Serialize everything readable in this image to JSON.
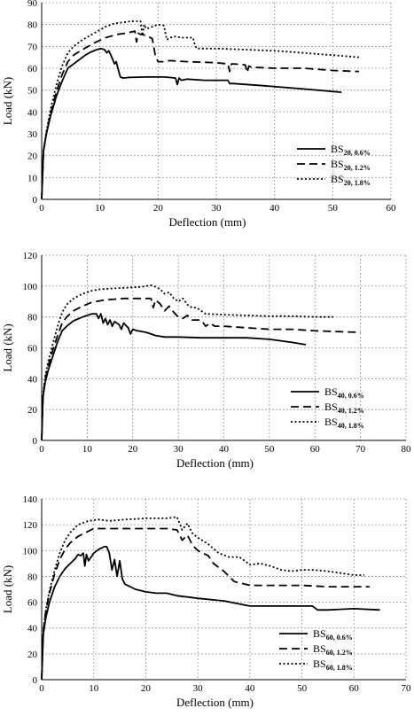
{
  "chart_data": [
    {
      "type": "line",
      "title": "",
      "xlabel": "Deflection (mm)",
      "ylabel": "Load (kN)",
      "xlim": [
        0,
        60
      ],
      "ylim": [
        0,
        90
      ],
      "xticks": [
        0,
        10,
        20,
        30,
        40,
        50,
        60
      ],
      "yticks": [
        0,
        10,
        20,
        30,
        40,
        50,
        60,
        70,
        80,
        90
      ],
      "grid": true,
      "legend_position": "bottom-right",
      "series": [
        {
          "name": "BS",
          "sub": "20, 0.6%",
          "dash": "solid",
          "x": [
            0,
            0.3,
            0.8,
            1.5,
            2.5,
            3.5,
            4.5,
            5.5,
            6.5,
            7.5,
            8.5,
            9.5,
            10.2,
            10.8,
            11.2,
            11.5,
            11.9,
            12.2,
            12.5,
            12.8,
            13.1,
            13.5,
            14,
            15,
            18,
            21,
            22,
            23,
            23.3,
            23.6,
            24,
            25,
            28,
            32,
            32.3,
            33,
            38,
            45,
            51.5
          ],
          "y": [
            0,
            22,
            30,
            38,
            47,
            54,
            60,
            62,
            64,
            66,
            67.5,
            68.5,
            69,
            68.5,
            67,
            68,
            66,
            64,
            62,
            63,
            60,
            56,
            55.5,
            55.8,
            56,
            56,
            55.8,
            55.5,
            52.5,
            55.5,
            54.5,
            55,
            54.5,
            54.5,
            53,
            53,
            52,
            50.5,
            49
          ]
        },
        {
          "name": "BS",
          "sub": "20, 1.2%",
          "dash": "dashed",
          "x": [
            0,
            0.3,
            0.8,
            1.5,
            2.5,
            3.5,
            4.5,
            5.5,
            7,
            9,
            11,
            13,
            14.5,
            16,
            16.3,
            16.6,
            17,
            18,
            19,
            19.5,
            20,
            21,
            22,
            25,
            30,
            32,
            32.3,
            32.6,
            33,
            35,
            35.3,
            35.6,
            36,
            40,
            45,
            50,
            54.5
          ],
          "y": [
            0,
            22,
            30,
            39,
            49,
            57,
            63,
            66,
            68.5,
            71.5,
            74,
            75.5,
            76,
            77,
            72,
            76,
            75.5,
            75,
            73.5,
            66,
            63,
            63,
            63.5,
            63,
            62.5,
            62,
            58.5,
            62,
            62,
            61.5,
            58,
            61,
            60.5,
            60,
            60,
            59,
            58.5
          ]
        },
        {
          "name": "BS",
          "sub": "20, 1.8%",
          "dash": "dotted",
          "x": [
            0,
            0.3,
            0.8,
            1.5,
            2.5,
            3.5,
            4.5,
            5.5,
            7,
            9,
            11,
            12.5,
            14,
            15.5,
            16.5,
            17,
            17.3,
            17.6,
            18,
            19,
            20,
            21,
            21.5,
            22,
            23,
            24,
            26,
            26.3,
            26.6,
            28,
            30,
            35,
            40,
            45,
            50,
            54.5
          ],
          "y": [
            0,
            22,
            31,
            41,
            52,
            61,
            67,
            70,
            73,
            76,
            79,
            80.5,
            81,
            81.5,
            81.5,
            81.5,
            75,
            80,
            78,
            79,
            80,
            79.5,
            73,
            74,
            74.5,
            74,
            74,
            71,
            69,
            69,
            69,
            68.5,
            68,
            67,
            66,
            65
          ]
        }
      ]
    },
    {
      "type": "line",
      "title": "",
      "xlabel": "Deflection (mm)",
      "ylabel": "Load (kN)",
      "xlim": [
        0,
        80
      ],
      "ylim": [
        0,
        120
      ],
      "xticks": [
        0,
        10,
        20,
        30,
        40,
        50,
        60,
        70,
        80
      ],
      "yticks": [
        0,
        20,
        40,
        60,
        80,
        100,
        120
      ],
      "grid": true,
      "legend_position": "bottom-right",
      "series": [
        {
          "name": "BS",
          "sub": "40, 0.6%",
          "dash": "solid",
          "x": [
            0,
            0.3,
            0.8,
            1.5,
            2.5,
            3.5,
            4.5,
            5.5,
            7,
            9,
            11,
            12,
            12.5,
            13,
            13.5,
            14,
            14.5,
            15,
            15.5,
            16,
            17,
            17.5,
            18,
            19,
            19.5,
            20,
            21,
            23,
            25,
            27,
            30,
            35,
            40,
            45,
            50,
            55,
            58
          ],
          "y": [
            0,
            28,
            38,
            46,
            55,
            64,
            71,
            74,
            77.5,
            80,
            82,
            82,
            79,
            82,
            76,
            79,
            75,
            78,
            74,
            77,
            75,
            72,
            76,
            73,
            69,
            72,
            71,
            70,
            68,
            67,
            67,
            66.5,
            66.5,
            66.5,
            65.5,
            63.5,
            62
          ]
        },
        {
          "name": "BS",
          "sub": "40, 1.2%",
          "dash": "dashed",
          "x": [
            0,
            0.3,
            0.8,
            1.5,
            2.5,
            3.5,
            4.5,
            5.5,
            7,
            9,
            11,
            14,
            18,
            22,
            24,
            24.5,
            25,
            26,
            27,
            28,
            29,
            30,
            31,
            32,
            33,
            35,
            36,
            37,
            38,
            40,
            45,
            50,
            55,
            60,
            65,
            70
          ],
          "y": [
            0,
            29,
            40,
            49,
            59,
            68,
            76,
            80,
            84,
            87,
            89.5,
            91,
            92,
            92,
            92,
            86,
            91,
            88.5,
            84,
            87,
            83,
            80,
            79,
            81,
            78,
            78,
            74,
            76,
            74,
            74,
            73,
            72,
            72,
            71,
            70.5,
            70
          ]
        },
        {
          "name": "BS",
          "sub": "40, 1.8%",
          "dash": "dotted",
          "x": [
            0,
            0.3,
            0.8,
            1.5,
            2.5,
            3.5,
            4.5,
            5.5,
            7,
            9,
            11,
            13,
            16,
            19,
            22,
            24,
            25,
            26,
            27,
            28,
            29,
            30,
            31,
            32,
            33,
            34,
            35,
            36,
            40,
            45,
            50,
            55,
            60,
            64
          ],
          "y": [
            0,
            30,
            42,
            52,
            63,
            74,
            83,
            88,
            92,
            95,
            97,
            98,
            98.5,
            99,
            99.5,
            100.5,
            99.5,
            98,
            95,
            96,
            92,
            90,
            92,
            88,
            86,
            86,
            84,
            82,
            81.5,
            81,
            80.5,
            80.5,
            80,
            80
          ]
        }
      ]
    },
    {
      "type": "line",
      "title": "",
      "xlabel": "Deflection (mm)",
      "ylabel": "Load (kN)",
      "xlim": [
        0,
        70
      ],
      "ylim": [
        0,
        140
      ],
      "xticks": [
        0,
        10,
        20,
        30,
        40,
        50,
        60,
        70
      ],
      "yticks": [
        0,
        20,
        40,
        60,
        80,
        100,
        120,
        140
      ],
      "grid": true,
      "legend_position": "bottom-right",
      "series": [
        {
          "name": "BS",
          "sub": "60, 0.6%",
          "dash": "solid",
          "x": [
            0,
            0.3,
            0.8,
            1.5,
            2.5,
            3.5,
            4.5,
            5.5,
            6.5,
            7,
            7.5,
            8,
            8.3,
            8.6,
            9,
            9.5,
            10,
            11,
            12,
            12.5,
            13,
            13.5,
            14,
            14.5,
            15,
            15.5,
            16,
            17,
            18,
            20,
            22,
            24,
            26,
            28,
            30,
            35,
            40,
            45,
            50,
            52,
            53,
            55,
            60,
            65
          ],
          "y": [
            0,
            35,
            48,
            60,
            72,
            80,
            86,
            90,
            94,
            97,
            96,
            98,
            88,
            97,
            92,
            95,
            98,
            101,
            103,
            103,
            98,
            85,
            93,
            80,
            92,
            78,
            74,
            72,
            70,
            68,
            67,
            67,
            65,
            64,
            63,
            61,
            57,
            57,
            57,
            57,
            54,
            54,
            55,
            54
          ]
        },
        {
          "name": "BS",
          "sub": "60, 1.2%",
          "dash": "dashed",
          "x": [
            0,
            0.3,
            0.8,
            1.5,
            2.5,
            3.5,
            4.5,
            5.5,
            7,
            9,
            10,
            12,
            15,
            20,
            24,
            26,
            27,
            28,
            29,
            30,
            31,
            32,
            33,
            34,
            35,
            36,
            37,
            40,
            45,
            50,
            55,
            60,
            63
          ],
          "y": [
            0,
            38,
            53,
            67,
            82,
            93,
            101,
            106,
            111,
            115,
            117,
            117,
            117,
            117,
            117,
            116,
            108,
            112,
            104,
            100,
            98,
            96,
            90,
            87,
            84,
            80,
            76,
            73,
            73,
            73,
            72,
            72,
            72
          ]
        },
        {
          "name": "BS",
          "sub": "60, 1.8%",
          "dash": "dotted",
          "x": [
            0,
            0.3,
            0.8,
            1.5,
            2.5,
            3.5,
            4.5,
            5.5,
            7,
            9,
            11,
            13,
            16,
            20,
            24,
            26,
            27,
            28,
            29,
            30,
            32,
            34,
            36,
            38,
            39,
            40,
            42,
            44,
            46,
            48,
            50,
            52,
            55,
            60,
            62
          ],
          "y": [
            0,
            38,
            54,
            69,
            85,
            98,
            108,
            114,
            120,
            123,
            124,
            123,
            124,
            125,
            125,
            126,
            116,
            121,
            113,
            110,
            105,
            98,
            95,
            95,
            92,
            89,
            90,
            88,
            85,
            84,
            85,
            85,
            84,
            81,
            81
          ]
        }
      ]
    }
  ]
}
